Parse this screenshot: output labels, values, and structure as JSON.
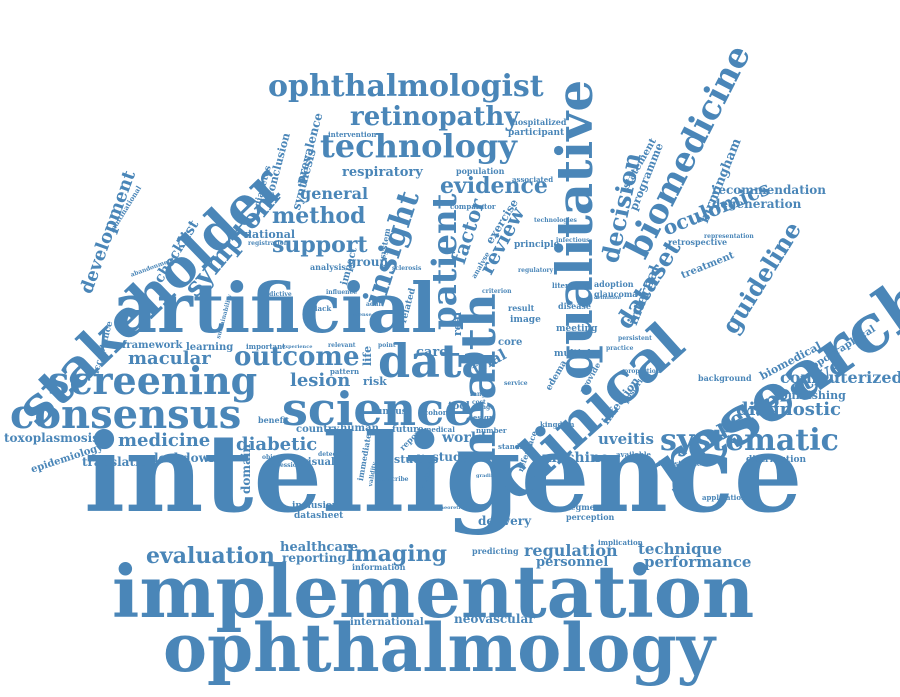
{
  "colors": {
    "word": "#4a86b8",
    "background": "#ffffff"
  },
  "words": {
    "intelligence": "intelligence",
    "implementation": "implementation",
    "ophthalmology": "ophthalmology",
    "artificial": "artificial",
    "research": "research",
    "clinical": "clinical",
    "qualitative": "qualitative",
    "health": "health",
    "stakeholder": "stakeholder",
    "consensus": "consensus",
    "screening": "screening",
    "science": "science",
    "data": "data",
    "ophthalmologist": "ophthalmologist",
    "technology": "technology",
    "biomedicine": "biomedicine",
    "biomedical_big": "biomedical",
    "patient": "patient",
    "insight": "insight",
    "retinopathy": "retinopathy",
    "systematic": "systematic",
    "outcome": "outcome",
    "imaging": "imaging",
    "evaluation": "evaluation",
    "symptom": "symptom",
    "dataset": "dataset",
    "guideline": "guideline",
    "perspective": "perspective",
    "decision": "decision",
    "evidence": "evidence",
    "oculomics": "oculomics",
    "support": "support",
    "method": "method",
    "review": "review",
    "factor": "factor",
    "development": "development",
    "medicine": "medicine",
    "diabetic": "diabetic",
    "macular": "macular",
    "lesion": "lesion",
    "diagnostic": "diagnostic",
    "computerized": "computerized",
    "regulation": "regulation",
    "technique": "technique",
    "performance": "performance",
    "machine": "machine",
    "uveitis": "uveitis",
    "world": "world",
    "delivery": "delivery",
    "healthcare": "healthcare",
    "reporting": "reporting",
    "personnel": "personnel",
    "neovascular": "neovascular",
    "international": "international",
    "translation": "translation",
    "lockdown": "lockdown",
    "toxoplasmosis": "toxoplasmosis",
    "epidemiology": "epidemiology",
    "general": "general",
    "respiratory": "respiratory",
    "checklist": "checklist",
    "birmingham": "birmingham",
    "recommendation": "recommendation",
    "degeneration": "degeneration",
    "internal": "internal",
    "programme": "programme",
    "statement": "statement",
    "biomedical_small": "biomedical",
    "topographical": "topographical",
    "publishing": "publishing",
    "treatment": "treatment",
    "trial": "trial",
    "care": "care",
    "study": "study",
    "studies": "studies",
    "domain": "domain",
    "visual": "visual",
    "country": "country",
    "human": "human",
    "future": "future",
    "fundus": "fundus",
    "tool": "tool",
    "risk": "risk",
    "core": "core",
    "multiple": "multiple",
    "meeting": "meeting",
    "image": "image",
    "result": "result",
    "exercise": "exercise",
    "comparator": "comparator",
    "population": "population",
    "participant": "participant",
    "hospitalized": "hospitalized",
    "associated": "associated",
    "national": "national",
    "conclusion": "conclusion",
    "prevalence": "prevalence",
    "synthesis": "synthesis",
    "intervention": "intervention",
    "diabetes": "diabetes",
    "framework": "framework",
    "learning": "learning",
    "acceptance": "acceptance",
    "multinational": "multinational",
    "benefit": "benefit",
    "inclusion": "inclusion",
    "datasheet": "datasheet",
    "information": "information",
    "predicting": "predicting",
    "segment": "segment",
    "perception": "perception",
    "implication": "implication",
    "application": "application",
    "available": "available",
    "investigate": "investigate",
    "distribution": "distribution",
    "background": "background",
    "retrospective": "retrospective",
    "representation": "representation",
    "technologies": "technologies",
    "principle": "principle",
    "infectious": "infectious",
    "literature": "literature",
    "adoption": "adoption",
    "glaucoma": "glaucoma",
    "disease": "disease",
    "infection": "infection",
    "posterior": "posterior",
    "edema": "edema",
    "provide": "provide",
    "kingdom": "kingdom",
    "standard": "standard",
    "reference": "reference",
    "report": "report",
    "related": "related",
    "real": "real",
    "group": "group",
    "analysis": "analysis",
    "impact": "impact",
    "life": "life",
    "pattern": "pattern",
    "system": "system",
    "registration": "registration",
    "abandonment": "abandonment",
    "important": "important",
    "predictive": "predictive",
    "sustainability": "sustainability",
    "influence": "influence",
    "sclerosis": "sclerosis",
    "criterion": "criterion",
    "regulatory": "regulatory",
    "analyse": "analyse",
    "persistent": "persistent",
    "proportion": "proportion",
    "practice": "practice",
    "number": "number",
    "medical": "medical",
    "cohort": "cohort",
    "detection": "detection",
    "black": "black",
    "adult": "adult",
    "point": "point",
    "relevant": "relevant",
    "experience": "experience",
    "objective": "objective",
    "professional": "professional",
    "immediate": "immediate",
    "describe": "describe",
    "validity": "validity",
    "cost": "cost",
    "design": "design",
    "service": "service",
    "stage": "stage",
    "grading": "grading",
    "theoretical": "theoretical",
    "definition": "definition",
    "feasibility": "feasibility",
    "range": "range",
    "defense": "defense",
    "overall": "overall"
  }
}
